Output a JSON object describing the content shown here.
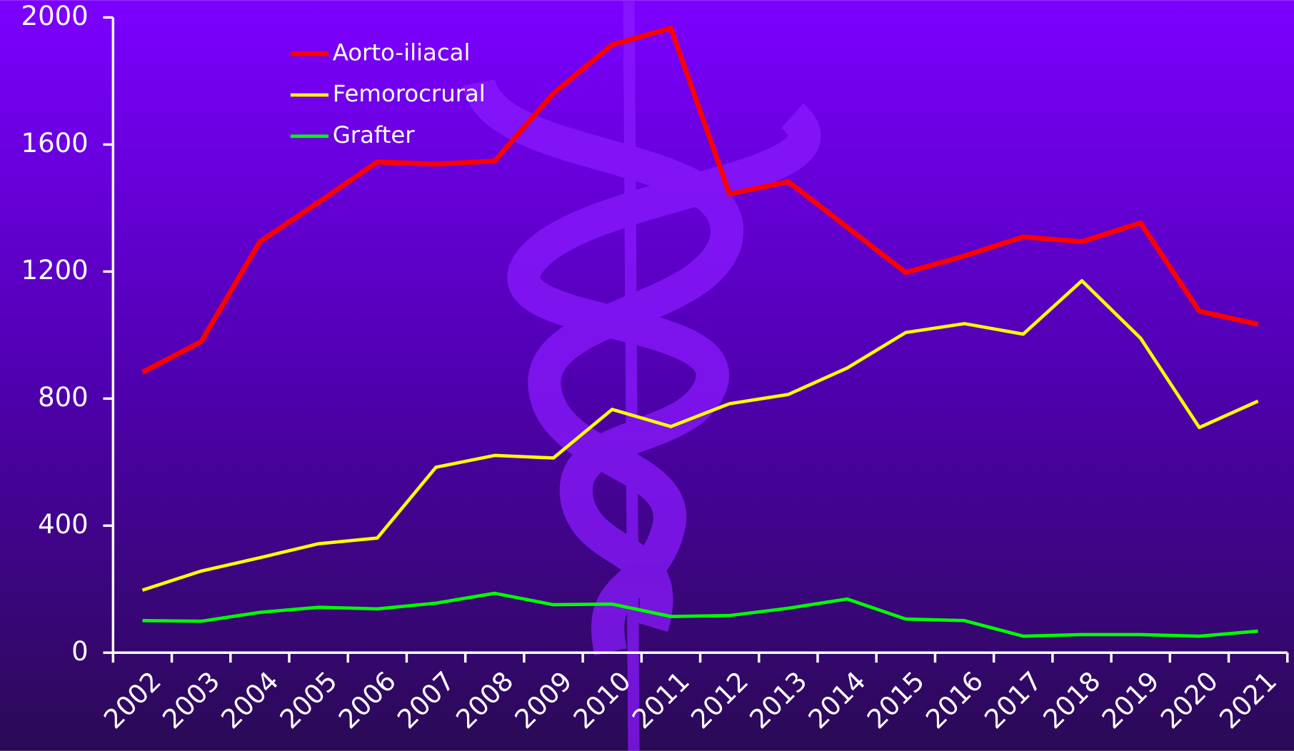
{
  "chart_data": {
    "type": "line",
    "categories": [
      "2002",
      "2003",
      "2004",
      "2005",
      "2006",
      "2007",
      "2008",
      "2009",
      "2010",
      "2011",
      "2012",
      "2013",
      "2014",
      "2015",
      "2016",
      "2017",
      "2018",
      "2019",
      "2020",
      "2021"
    ],
    "series": [
      {
        "name": "Aorto-iliacal",
        "color": "#ff0000",
        "values": [
          883,
          979,
          1294,
          1418,
          1545,
          1538,
          1548,
          1761,
          1914,
          1966,
          1444,
          1483,
          1340,
          1197,
          1249,
          1309,
          1294,
          1353,
          1075,
          1034
        ]
      },
      {
        "name": "Femorocrural",
        "color": "#ffff00",
        "values": [
          197,
          257,
          299,
          343,
          361,
          584,
          621,
          613,
          766,
          712,
          784,
          813,
          896,
          1008,
          1036,
          1003,
          1171,
          990,
          709,
          792
        ]
      },
      {
        "name": "Grafter",
        "color": "#00ff00",
        "values": [
          101,
          99,
          127,
          143,
          138,
          156,
          187,
          151,
          153,
          114,
          117,
          140,
          169,
          106,
          101,
          52,
          57,
          57,
          52,
          68
        ]
      }
    ],
    "ylim": [
      0,
      2000
    ],
    "yticks": [
      0,
      400,
      800,
      1200,
      1600,
      2000
    ],
    "legend": "top-left"
  }
}
